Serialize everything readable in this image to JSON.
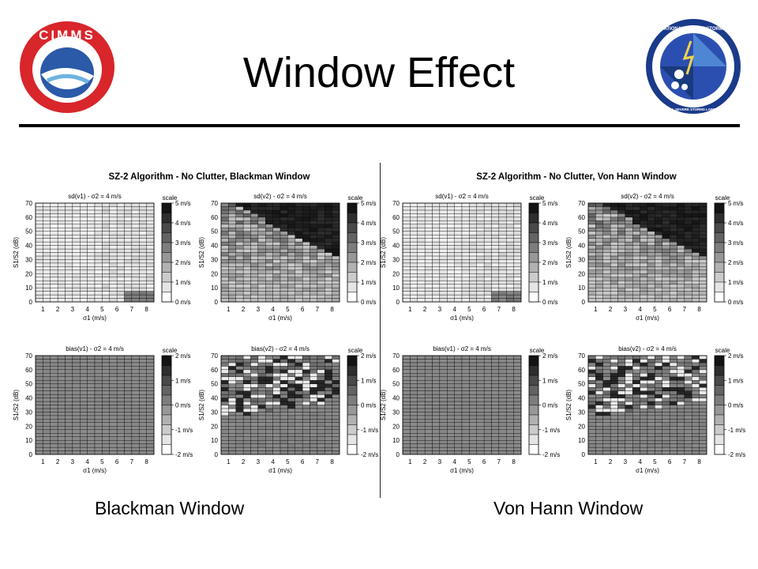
{
  "slide": {
    "title": "Window Effect",
    "left_caption": "Blackman Window",
    "right_caption": "Von Hann Window"
  },
  "logos": {
    "left": {
      "text": "CIMMS",
      "name": "cimms-logo"
    },
    "right": {
      "text": "NATIONAL SEVERE STORMS LABORATORY",
      "subtext": "U.S. DEPARTMENT OF COMMERCE · NATIONAL OCEANIC AND ATMOSPHERIC ADMINISTRATION",
      "name": "nssl-logo"
    }
  },
  "figures": [
    {
      "title": "SZ-2 Algorithm - No Clutter, Blackman Window",
      "panels": [
        {
          "title": "sd(v1) - σ2 = 4 m/s",
          "scale": [
            "5 m/s",
            "4 m/s",
            "3 m/s",
            "2 m/s",
            "1 m/s",
            "0 m/s"
          ]
        },
        {
          "title": "sd(v2) - σ2 = 4 m/s",
          "scale": [
            "5 m/s",
            "4 m/s",
            "3 m/s",
            "2 m/s",
            "1 m/s",
            "0 m/s"
          ]
        },
        {
          "title": "bias(v1) - σ2 = 4 m/s",
          "scale": [
            "2 m/s",
            "1 m/s",
            "0 m/s",
            "-1 m/s",
            "-2 m/s"
          ]
        },
        {
          "title": "bias(v2) - σ2 = 4 m/s",
          "scale": [
            "2 m/s",
            "1 m/s",
            "0 m/s",
            "-1 m/s",
            "-2 m/s"
          ]
        }
      ]
    },
    {
      "title": "SZ-2 Algorithm - No Clutter, Von Hann Window",
      "panels": [
        {
          "title": "sd(v1) - σ2 = 4 m/s",
          "scale": [
            "5 m/s",
            "4 m/s",
            "3 m/s",
            "2 m/s",
            "1 m/s",
            "0 m/s"
          ]
        },
        {
          "title": "sd(v2) - σ2 = 4 m/s",
          "scale": [
            "5 m/s",
            "4 m/s",
            "3 m/s",
            "2 m/s",
            "1 m/s",
            "0 m/s"
          ]
        },
        {
          "title": "bias(v1) - σ2 = 4 m/s",
          "scale": [
            "2 m/s",
            "1 m/s",
            "0 m/s",
            "-1 m/s",
            "-2 m/s"
          ]
        },
        {
          "title": "bias(v2) - σ2 = 4 m/s",
          "scale": [
            "2 m/s",
            "1 m/s",
            "0 m/s",
            "-1 m/s",
            "-2 m/s"
          ]
        }
      ]
    }
  ],
  "axes": {
    "scale_label": "scale",
    "xlabel": "σ1 (m/s)",
    "ylabel": "S1/S2 (dB)",
    "xticks": [
      "1",
      "2",
      "3",
      "4",
      "5",
      "6",
      "7",
      "8"
    ],
    "yticks": [
      "70",
      "60",
      "50",
      "40",
      "30",
      "20",
      "10",
      "0"
    ]
  }
}
